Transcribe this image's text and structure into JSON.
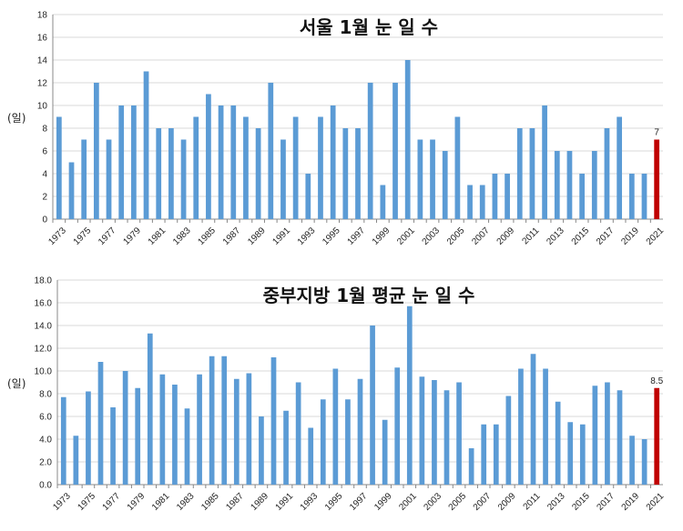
{
  "colors": {
    "bar": "#5b9bd5",
    "highlight": "#c00000",
    "grid": "#d9d9d9",
    "axis": "#888888"
  },
  "chart_data": [
    {
      "type": "bar",
      "title": "서울 1월 눈 일 수",
      "ylabel": "(일)",
      "xlabel": "",
      "ylim": [
        0,
        18
      ],
      "ytick_step": 2,
      "ytick_decimals": 0,
      "grid": true,
      "categories": [
        "1973",
        "1974",
        "1975",
        "1976",
        "1977",
        "1978",
        "1979",
        "1980",
        "1981",
        "1982",
        "1983",
        "1984",
        "1985",
        "1986",
        "1987",
        "1988",
        "1989",
        "1990",
        "1991",
        "1992",
        "1993",
        "1994",
        "1995",
        "1996",
        "1997",
        "1998",
        "1999",
        "2000",
        "2001",
        "2002",
        "2003",
        "2004",
        "2005",
        "2006",
        "2007",
        "2008",
        "2009",
        "2010",
        "2011",
        "2012",
        "2013",
        "2014",
        "2015",
        "2016",
        "2017",
        "2018",
        "2019",
        "2020",
        "2021"
      ],
      "xtick_labels": [
        "1973",
        "1975",
        "1977",
        "1979",
        "1981",
        "1983",
        "1985",
        "1987",
        "1989",
        "1991",
        "1993",
        "1995",
        "1997",
        "1999",
        "2001",
        "2003",
        "2005",
        "2007",
        "2009",
        "2011",
        "2013",
        "2015",
        "2017",
        "2019",
        "2021"
      ],
      "values": [
        9,
        5,
        7,
        12,
        7,
        10,
        10,
        13,
        8,
        8,
        7,
        9,
        11,
        10,
        10,
        9,
        8,
        12,
        7,
        9,
        4,
        9,
        10,
        8,
        8,
        12,
        3,
        12,
        14,
        7,
        7,
        6,
        9,
        3,
        3,
        4,
        4,
        8,
        8,
        10,
        6,
        6,
        4,
        6,
        8,
        9,
        4,
        4,
        7
      ],
      "highlight_index": 48,
      "data_labels": [
        {
          "index": 48,
          "text": "7"
        }
      ]
    },
    {
      "type": "bar",
      "title": "중부지방 1월 평균 눈 일 수",
      "ylabel": "(일)",
      "xlabel": "",
      "ylim": [
        0,
        18
      ],
      "ytick_step": 2,
      "ytick_decimals": 1,
      "grid": true,
      "categories": [
        "1973",
        "1974",
        "1975",
        "1976",
        "1977",
        "1978",
        "1979",
        "1980",
        "1981",
        "1982",
        "1983",
        "1984",
        "1985",
        "1986",
        "1987",
        "1988",
        "1989",
        "1990",
        "1991",
        "1992",
        "1993",
        "1994",
        "1995",
        "1996",
        "1997",
        "1998",
        "1999",
        "2000",
        "2001",
        "2002",
        "2003",
        "2004",
        "2005",
        "2006",
        "2007",
        "2008",
        "2009",
        "2010",
        "2011",
        "2012",
        "2013",
        "2014",
        "2015",
        "2016",
        "2017",
        "2018",
        "2019",
        "2020",
        "2021"
      ],
      "xtick_labels": [
        "1973",
        "1975",
        "1977",
        "1979",
        "1981",
        "1983",
        "1985",
        "1987",
        "1989",
        "1991",
        "1993",
        "1995",
        "1997",
        "1999",
        "2001",
        "2003",
        "2005",
        "2007",
        "2009",
        "2011",
        "2013",
        "2015",
        "2017",
        "2019",
        "2021"
      ],
      "values": [
        7.7,
        4.3,
        8.2,
        10.8,
        6.8,
        10.0,
        8.5,
        13.3,
        9.7,
        8.8,
        6.7,
        9.7,
        11.3,
        11.3,
        9.3,
        9.8,
        6.0,
        11.2,
        6.5,
        9.0,
        5.0,
        7.5,
        10.2,
        7.5,
        9.3,
        14.0,
        5.7,
        10.3,
        15.7,
        9.5,
        9.2,
        8.3,
        9.0,
        3.2,
        5.3,
        5.3,
        7.8,
        10.2,
        11.5,
        10.2,
        7.3,
        5.5,
        5.3,
        8.7,
        9.0,
        8.3,
        4.3,
        4.0,
        8.5
      ],
      "highlight_index": 48,
      "data_labels": [
        {
          "index": 48,
          "text": "8.5"
        }
      ]
    }
  ]
}
